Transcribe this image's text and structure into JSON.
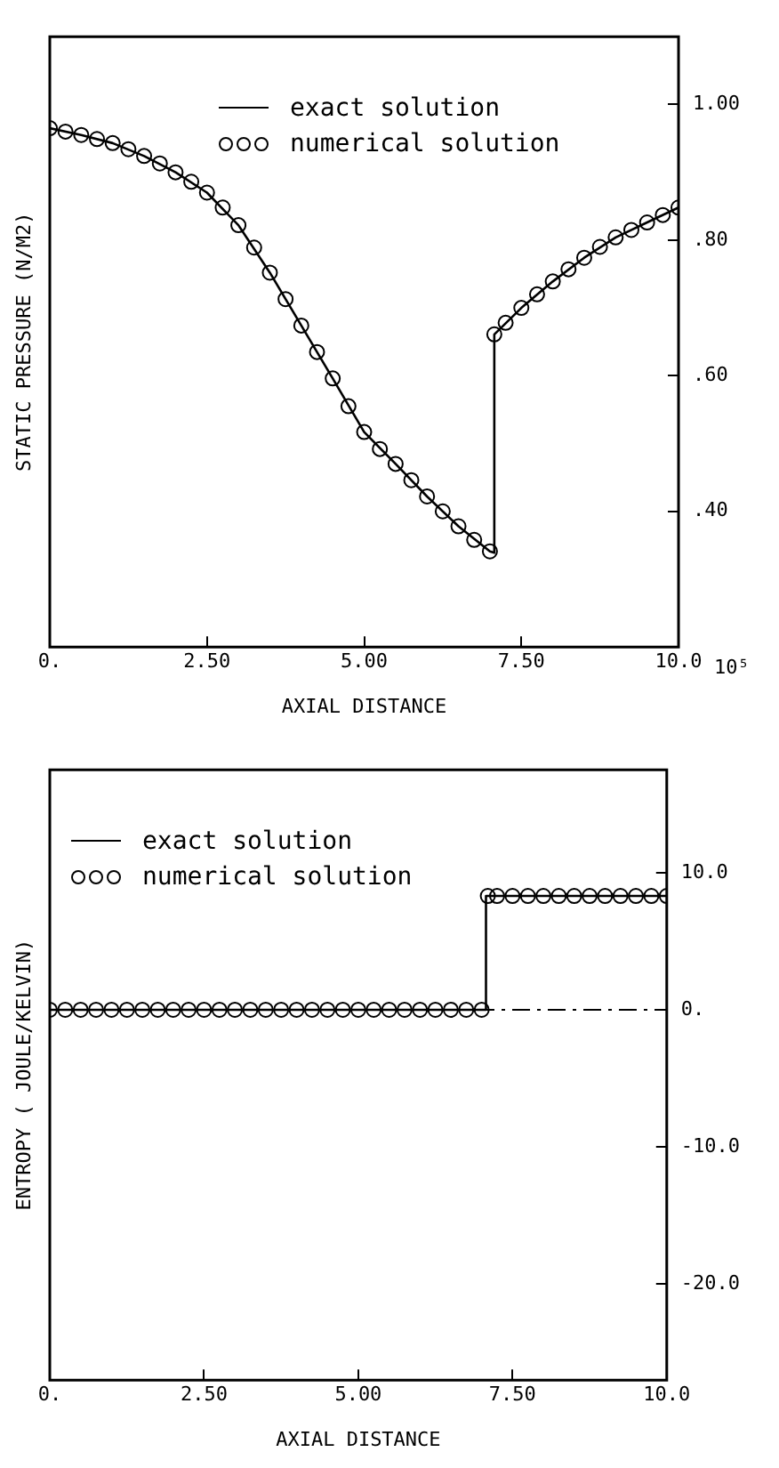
{
  "chart_data": [
    {
      "type": "line",
      "xlabel": "AXIAL DISTANCE",
      "ylabel": "STATIC PRESSURE (N/M2)",
      "annotations": [
        "10⁵"
      ],
      "xlim": [
        0,
        10
      ],
      "xticks": [
        {
          "value": 0,
          "label": "0."
        },
        {
          "value": 2.5,
          "label": "2.50"
        },
        {
          "value": 5,
          "label": "5.00"
        },
        {
          "value": 7.5,
          "label": "7.50"
        },
        {
          "value": 10,
          "label": "10.0"
        }
      ],
      "ylim": [
        0.2,
        1.1
      ],
      "yticks": [
        {
          "value": 0.4,
          "label": ".40"
        },
        {
          "value": 0.6,
          "label": ".60"
        },
        {
          "value": 0.8,
          "label": ".80"
        },
        {
          "value": 1.0,
          "label": "1.00"
        }
      ],
      "grid": false,
      "legend": "top right",
      "series": [
        {
          "name": "exact solution",
          "type": "line",
          "color": "#000000",
          "marker": "none",
          "line_style": "solid",
          "x": [
            0,
            0.5,
            1,
            1.5,
            2,
            2.5,
            3,
            3.5,
            4,
            4.5,
            5,
            5.5,
            6,
            6.5,
            7,
            7.07,
            7.07,
            7.5,
            8,
            8.5,
            9,
            9.5,
            10
          ],
          "values": [
            0.965,
            0.955,
            0.943,
            0.924,
            0.9,
            0.87,
            0.822,
            0.752,
            0.674,
            0.596,
            0.517,
            0.47,
            0.422,
            0.378,
            0.341,
            0.339,
            0.661,
            0.7,
            0.739,
            0.774,
            0.804,
            0.826,
            0.848
          ]
        },
        {
          "name": "numerical solution",
          "type": "scatter",
          "color": "#000000",
          "marker": "circle",
          "x": [
            0,
            0.25,
            0.5,
            0.75,
            1,
            1.25,
            1.5,
            1.75,
            2,
            2.25,
            2.5,
            2.75,
            3,
            3.25,
            3.5,
            3.75,
            4,
            4.25,
            4.5,
            4.75,
            5,
            5.25,
            5.5,
            5.75,
            6,
            6.25,
            6.5,
            6.75,
            7,
            7.07,
            7.25,
            7.5,
            7.75,
            8,
            8.25,
            8.5,
            8.75,
            9,
            9.25,
            9.5,
            9.75,
            10
          ],
          "values": [
            0.965,
            0.96,
            0.955,
            0.949,
            0.943,
            0.934,
            0.924,
            0.913,
            0.9,
            0.886,
            0.87,
            0.848,
            0.822,
            0.789,
            0.752,
            0.713,
            0.674,
            0.635,
            0.596,
            0.555,
            0.517,
            0.492,
            0.47,
            0.446,
            0.422,
            0.4,
            0.378,
            0.358,
            0.341,
            0.661,
            0.678,
            0.7,
            0.72,
            0.739,
            0.757,
            0.774,
            0.79,
            0.804,
            0.815,
            0.826,
            0.837,
            0.848
          ]
        }
      ]
    },
    {
      "type": "line",
      "xlabel": "AXIAL DISTANCE",
      "ylabel": "ENTROPY ( JOULE/KELVIN)",
      "xlim": [
        0,
        10
      ],
      "xticks": [
        {
          "value": 0,
          "label": "0."
        },
        {
          "value": 2.5,
          "label": "2.50"
        },
        {
          "value": 5,
          "label": "5.00"
        },
        {
          "value": 7.5,
          "label": "7.50"
        },
        {
          "value": 10,
          "label": "10.0"
        }
      ],
      "ylim": [
        -27,
        17.5
      ],
      "yticks": [
        {
          "value": -20,
          "label": "-20.0"
        },
        {
          "value": -10,
          "label": "-10.0"
        },
        {
          "value": 0,
          "label": "0."
        },
        {
          "value": 10,
          "label": "10.0"
        }
      ],
      "grid": false,
      "legend": "top left",
      "ref_lines": [
        {
          "axis": "y",
          "value": 0,
          "line_style": "dashed",
          "color": "#000000"
        }
      ],
      "series": [
        {
          "name": "exact solution",
          "type": "line",
          "color": "#000000",
          "marker": "none",
          "line_style": "solid",
          "x": [
            0,
            7.07,
            7.07,
            10
          ],
          "values": [
            0,
            0,
            8.3,
            8.3
          ]
        },
        {
          "name": "numerical solution",
          "type": "scatter",
          "color": "#000000",
          "marker": "circle",
          "x": [
            0,
            0.25,
            0.5,
            0.75,
            1,
            1.25,
            1.5,
            1.75,
            2,
            2.25,
            2.5,
            2.75,
            3,
            3.25,
            3.5,
            3.75,
            4,
            4.25,
            4.5,
            4.75,
            5,
            5.25,
            5.5,
            5.75,
            6,
            6.25,
            6.5,
            6.75,
            7,
            7.1,
            7.25,
            7.5,
            7.75,
            8,
            8.25,
            8.5,
            8.75,
            9,
            9.25,
            9.5,
            9.75,
            10
          ],
          "values": [
            0,
            0,
            0,
            0,
            0,
            0,
            0,
            0,
            0,
            0,
            0,
            0,
            0,
            0,
            0,
            0,
            0,
            0,
            0,
            0,
            0,
            0,
            0,
            0,
            0,
            0,
            0,
            0,
            0,
            8.3,
            8.3,
            8.3,
            8.3,
            8.3,
            8.3,
            8.3,
            8.3,
            8.3,
            8.3,
            8.3,
            8.3,
            8.3
          ]
        }
      ]
    }
  ]
}
